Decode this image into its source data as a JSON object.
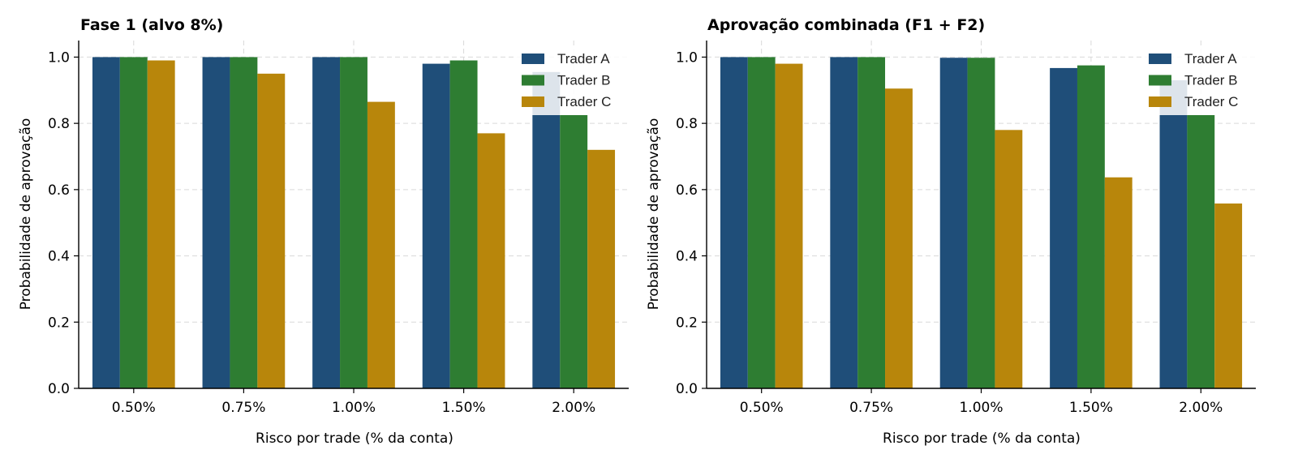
{
  "colors": {
    "Trader A": "#1f4e79",
    "Trader B": "#2e7d32",
    "Trader C": "#b8860b"
  },
  "chart_data": [
    {
      "type": "bar",
      "title": "Fase 1 (alvo 8%)",
      "xlabel": "Risco por trade (% da conta)",
      "ylabel": "Probabilidade de aprovação",
      "categories": [
        "0.50%",
        "0.75%",
        "1.00%",
        "1.50%",
        "2.00%"
      ],
      "ylim": [
        0,
        1.05
      ],
      "yticks": [
        "0.0",
        "0.2",
        "0.4",
        "0.6",
        "0.8",
        "1.0"
      ],
      "grid": true,
      "legend_position": "top-right",
      "series": [
        {
          "name": "Trader A",
          "values": [
            1.0,
            1.0,
            1.0,
            0.98,
            0.955
          ]
        },
        {
          "name": "Trader B",
          "values": [
            1.0,
            1.0,
            1.0,
            0.99,
            0.825
          ]
        },
        {
          "name": "Trader C",
          "values": [
            0.99,
            0.95,
            0.865,
            0.77,
            0.72
          ]
        }
      ]
    },
    {
      "type": "bar",
      "title": "Aprovação combinada (F1 + F2)",
      "xlabel": "Risco por trade (% da conta)",
      "ylabel": "Probabilidade de aprovação",
      "categories": [
        "0.50%",
        "0.75%",
        "1.00%",
        "1.50%",
        "2.00%"
      ],
      "ylim": [
        0,
        1.05
      ],
      "yticks": [
        "0.0",
        "0.2",
        "0.4",
        "0.6",
        "0.8",
        "1.0"
      ],
      "grid": true,
      "legend_position": "top-right",
      "series": [
        {
          "name": "Trader A",
          "values": [
            1.0,
            1.0,
            0.998,
            0.967,
            0.93
          ]
        },
        {
          "name": "Trader B",
          "values": [
            1.0,
            1.0,
            0.998,
            0.975,
            0.825
          ]
        },
        {
          "name": "Trader C",
          "values": [
            0.98,
            0.905,
            0.78,
            0.637,
            0.558
          ]
        }
      ]
    }
  ]
}
